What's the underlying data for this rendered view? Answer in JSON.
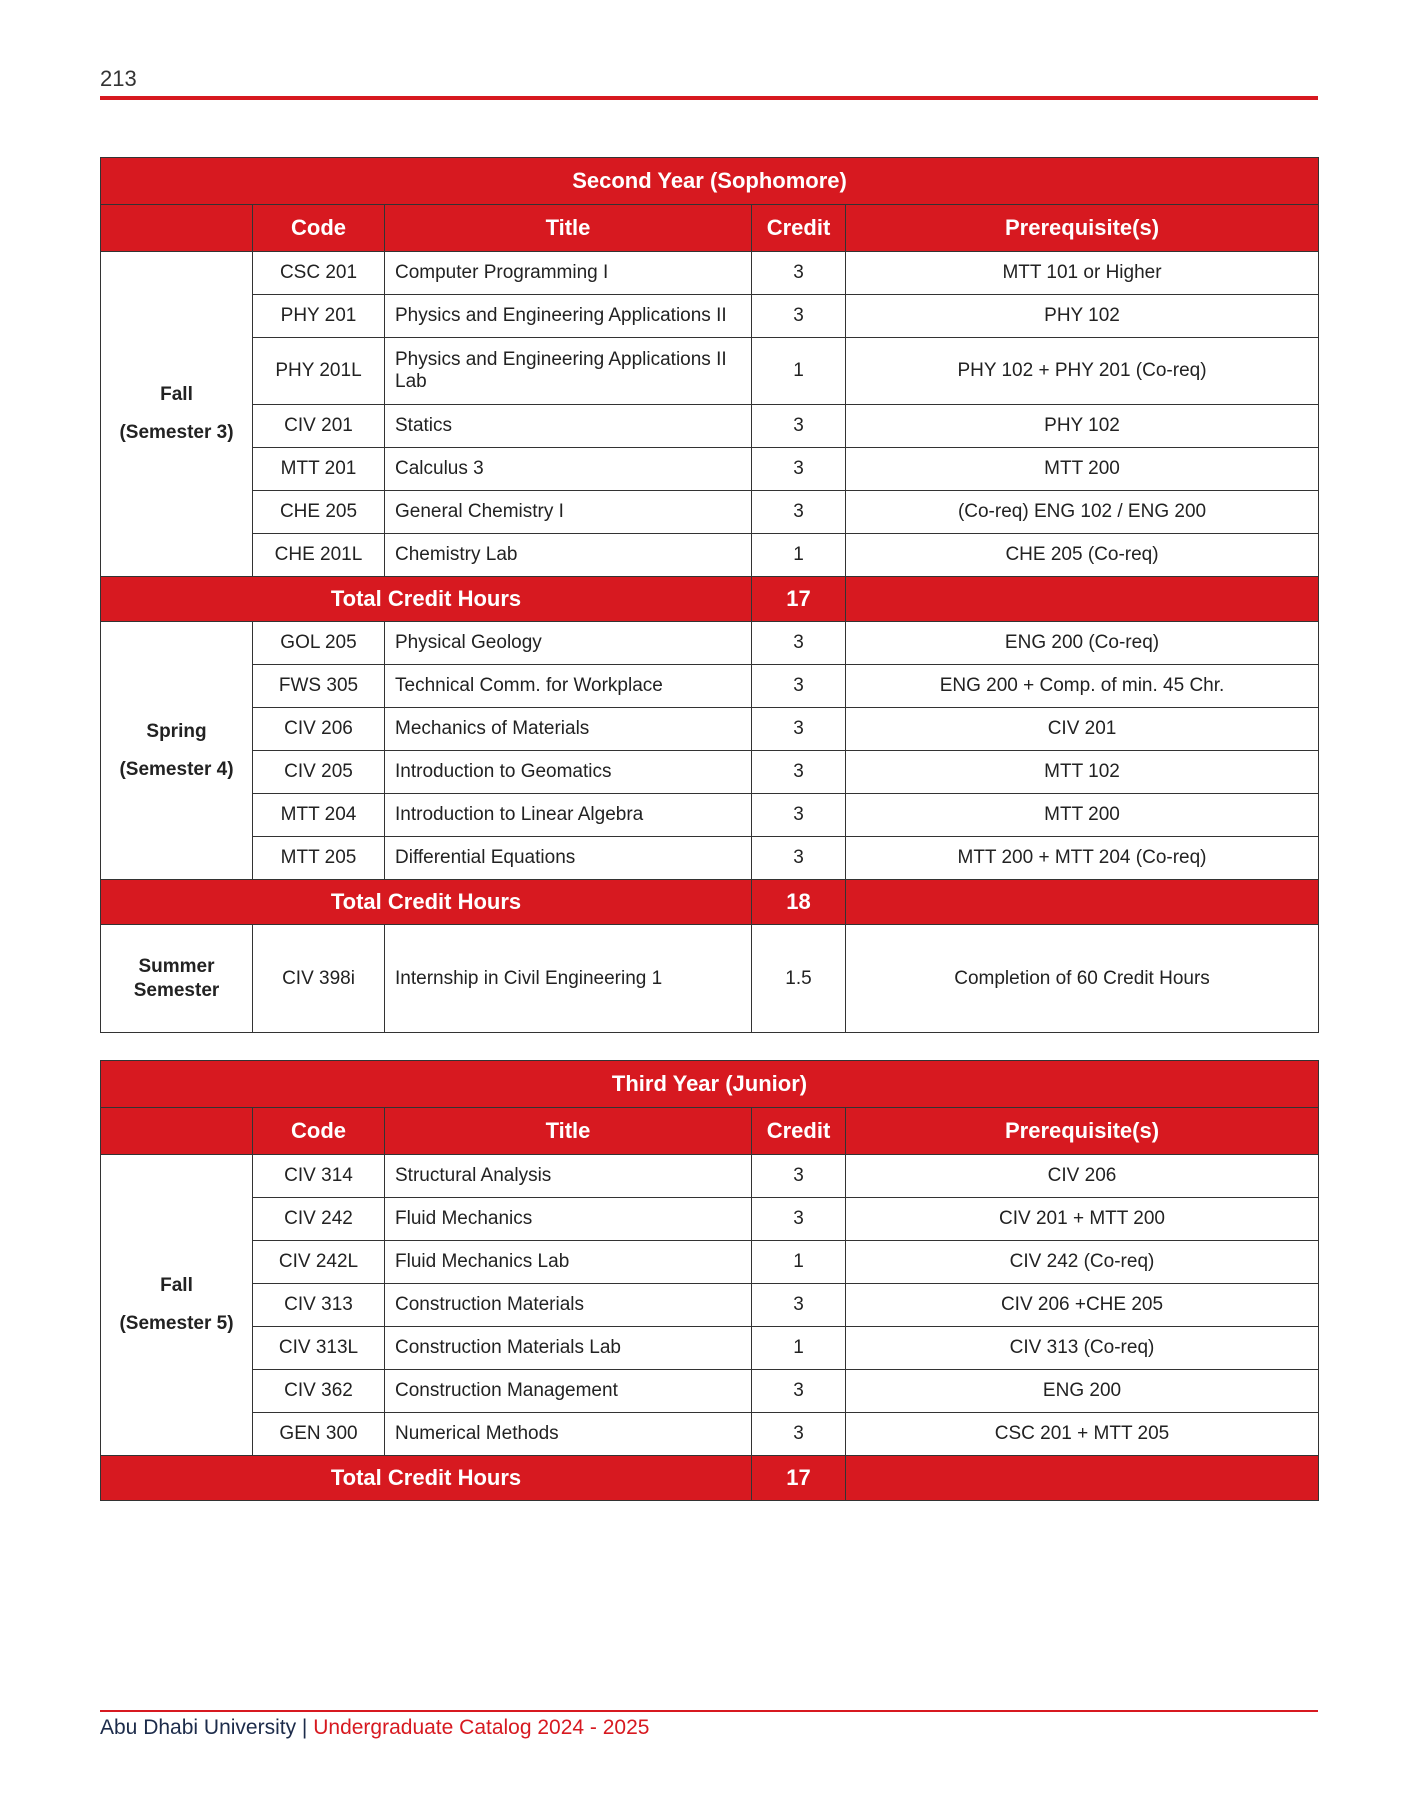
{
  "page_number": "213",
  "colors": {
    "accent": "#d71920",
    "footer_text": "#1c2b4a"
  },
  "headers": {
    "code": "Code",
    "title": "Title",
    "credit": "Credit",
    "prereq": "Prerequisite(s)"
  },
  "tables": [
    {
      "title": "Second Year (Sophomore)",
      "semesters": [
        {
          "line1": "Fall",
          "line2": "(Semester 3)",
          "total_label": "Total Credit Hours",
          "total": "17",
          "courses": [
            [
              "CSC 201",
              "Computer Programming I",
              "3",
              "MTT 101 or Higher"
            ],
            [
              "PHY 201",
              "Physics and Engineering Applications II",
              "3",
              "PHY 102"
            ],
            [
              "PHY 201L",
              "Physics and Engineering Applications II Lab",
              "1",
              "PHY 102 + PHY 201 (Co-req)"
            ],
            [
              "CIV  201",
              "Statics",
              "3",
              "PHY 102"
            ],
            [
              "MTT 201",
              "Calculus 3",
              "3",
              "MTT 200"
            ],
            [
              "CHE 205",
              "General Chemistry I",
              "3",
              "(Co-req) ENG 102 / ENG 200"
            ],
            [
              "CHE 201L",
              "Chemistry Lab",
              "1",
              "CHE 205 (Co-req)"
            ]
          ]
        },
        {
          "line1": "Spring",
          "line2": "(Semester 4)",
          "total_label": "Total Credit Hours",
          "total": "18",
          "courses": [
            [
              "GOL 205",
              "Physical Geology",
              "3",
              "ENG 200 (Co-req)"
            ],
            [
              "FWS 305",
              "Technical Comm. for Workplace",
              "3",
              "ENG 200 + Comp. of min. 45 Chr."
            ],
            [
              "CIV 206",
              "Mechanics of Materials",
              "3",
              "CIV 201"
            ],
            [
              "CIV 205",
              "Introduction to Geomatics",
              "3",
              "MTT 102"
            ],
            [
              "MTT 204",
              "Introduction to Linear Algebra",
              "3",
              "MTT 200"
            ],
            [
              "MTT 205",
              "Differential Equations",
              "3",
              "MTT 200 + MTT 204 (Co-req)"
            ]
          ]
        },
        {
          "line1": "Summer",
          "line2": "Semester",
          "summer": true,
          "courses": [
            [
              "CIV 398i",
              "Internship in Civil Engineering  1",
              "1.5",
              "Completion of  60 Credit Hours"
            ]
          ]
        }
      ]
    },
    {
      "title": "Third Year (Junior)",
      "semesters": [
        {
          "line1": "Fall",
          "line2": "(Semester 5)",
          "total_label": "Total Credit Hours",
          "total": "17",
          "courses": [
            [
              "CIV 314",
              "Structural Analysis",
              "3",
              "CIV 206"
            ],
            [
              "CIV 242",
              "Fluid Mechanics",
              "3",
              "CIV 201 + MTT 200"
            ],
            [
              "CIV 242L",
              "Fluid Mechanics Lab",
              "1",
              "CIV 242 (Co-req)"
            ],
            [
              "CIV 313",
              "Construction Materials",
              "3",
              "CIV 206 +CHE 205"
            ],
            [
              "CIV 313L",
              "Construction Materials Lab",
              "1",
              "CIV 313  (Co-req)"
            ],
            [
              "CIV 362",
              "Construction Management",
              "3",
              "ENG 200"
            ],
            [
              "GEN 300",
              "Numerical Methods",
              "3",
              "CSC 201 + MTT 205"
            ]
          ]
        }
      ]
    }
  ],
  "footer": {
    "university": "Abu Dhabi University",
    "separator": " | ",
    "catalog": "Undergraduate Catalog 2024 - 2025"
  }
}
